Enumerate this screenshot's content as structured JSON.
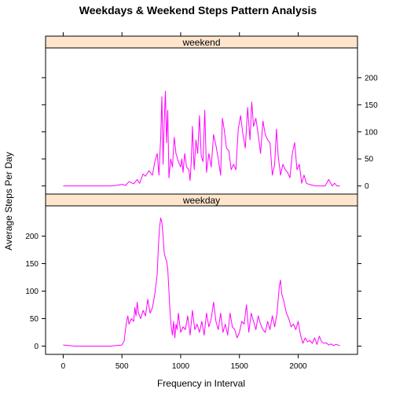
{
  "chart_data": {
    "type": "line",
    "title": "Weekdays & Weekend Steps Pattern Analysis",
    "xlabel": "Frequency in Interval",
    "ylabel": "Average Steps Per Day",
    "xlim": [
      -150,
      2505
    ],
    "ylim": [
      -15,
      255
    ],
    "x_ticks": [
      0,
      500,
      1000,
      1500,
      2000
    ],
    "y_ticks": [
      0,
      50,
      100,
      150,
      200
    ],
    "grid": false,
    "colors": {
      "line": "#ff00ff",
      "strip_bg": "#ffe5cc",
      "frame": "#000000"
    },
    "panels": [
      {
        "name": "weekend",
        "y_tick_side": "right",
        "x": [
          0,
          100,
          200,
          300,
          400,
          450,
          500,
          530,
          560,
          600,
          630,
          650,
          680,
          700,
          730,
          760,
          780,
          800,
          815,
          830,
          840,
          850,
          860,
          870,
          880,
          890,
          900,
          915,
          930,
          945,
          960,
          980,
          1000,
          1010,
          1020,
          1035,
          1050,
          1070,
          1080,
          1090,
          1100,
          1115,
          1130,
          1145,
          1160,
          1175,
          1190,
          1205,
          1220,
          1240,
          1260,
          1280,
          1300,
          1320,
          1340,
          1355,
          1370,
          1390,
          1410,
          1430,
          1450,
          1470,
          1490,
          1510,
          1530,
          1550,
          1570,
          1590,
          1605,
          1620,
          1640,
          1660,
          1680,
          1700,
          1720,
          1740,
          1760,
          1780,
          1800,
          1815,
          1830,
          1850,
          1870,
          1890,
          1910,
          1930,
          1950,
          1970,
          1990,
          2010,
          2030,
          2050,
          2070,
          2090,
          2110,
          2130,
          2150,
          2170,
          2200,
          2230,
          2260,
          2290,
          2310,
          2330,
          2355
        ],
        "values": [
          0,
          0,
          0,
          0,
          0,
          1,
          3,
          1,
          8,
          4,
          12,
          5,
          22,
          18,
          28,
          20,
          45,
          60,
          20,
          90,
          165,
          40,
          120,
          175,
          80,
          140,
          15,
          50,
          35,
          90,
          60,
          45,
          35,
          50,
          25,
          60,
          35,
          30,
          10,
          45,
          110,
          30,
          85,
          60,
          130,
          55,
          45,
          140,
          25,
          60,
          35,
          95,
          75,
          50,
          20,
          125,
          105,
          70,
          65,
          30,
          40,
          30,
          105,
          130,
          95,
          70,
          145,
          85,
          155,
          110,
          125,
          95,
          60,
          120,
          95,
          85,
          80,
          20,
          40,
          105,
          55,
          20,
          40,
          30,
          25,
          15,
          60,
          80,
          30,
          40,
          5,
          20,
          5,
          3,
          2,
          1,
          0,
          0,
          0,
          0,
          12,
          0,
          5,
          0,
          0
        ]
      },
      {
        "name": "weekday",
        "y_tick_side": "left",
        "x": [
          0,
          100,
          200,
          300,
          400,
          450,
          500,
          520,
          530,
          540,
          550,
          560,
          580,
          600,
          610,
          620,
          630,
          640,
          660,
          680,
          700,
          720,
          740,
          760,
          780,
          800,
          810,
          820,
          830,
          840,
          850,
          860,
          870,
          880,
          890,
          900,
          910,
          920,
          930,
          940,
          950,
          960,
          970,
          980,
          1000,
          1020,
          1040,
          1060,
          1080,
          1100,
          1120,
          1140,
          1160,
          1180,
          1200,
          1220,
          1240,
          1260,
          1280,
          1300,
          1320,
          1340,
          1360,
          1380,
          1400,
          1420,
          1440,
          1460,
          1480,
          1500,
          1520,
          1540,
          1560,
          1580,
          1600,
          1620,
          1640,
          1660,
          1680,
          1700,
          1720,
          1740,
          1760,
          1780,
          1800,
          1820,
          1840,
          1850,
          1860,
          1880,
          1900,
          1920,
          1940,
          1960,
          1980,
          2000,
          2020,
          2040,
          2060,
          2080,
          2100,
          2120,
          2140,
          2160,
          2180,
          2200,
          2220,
          2240,
          2260,
          2280,
          2300,
          2320,
          2355
        ],
        "values": [
          2,
          0,
          0,
          0,
          0,
          1,
          2,
          10,
          30,
          45,
          55,
          40,
          50,
          45,
          70,
          55,
          80,
          60,
          50,
          65,
          55,
          85,
          60,
          70,
          95,
          130,
          180,
          215,
          233,
          225,
          200,
          170,
          160,
          155,
          140,
          100,
          60,
          35,
          20,
          45,
          15,
          40,
          30,
          60,
          25,
          35,
          30,
          55,
          20,
          65,
          30,
          40,
          25,
          45,
          20,
          60,
          35,
          50,
          80,
          45,
          30,
          60,
          25,
          40,
          20,
          60,
          35,
          30,
          15,
          25,
          45,
          40,
          75,
          25,
          60,
          45,
          30,
          55,
          40,
          30,
          25,
          45,
          30,
          55,
          35,
          60,
          110,
          120,
          95,
          80,
          60,
          50,
          35,
          40,
          30,
          45,
          20,
          5,
          15,
          8,
          10,
          5,
          15,
          3,
          18,
          8,
          5,
          6,
          2,
          4,
          1,
          3,
          1
        ]
      }
    ]
  }
}
